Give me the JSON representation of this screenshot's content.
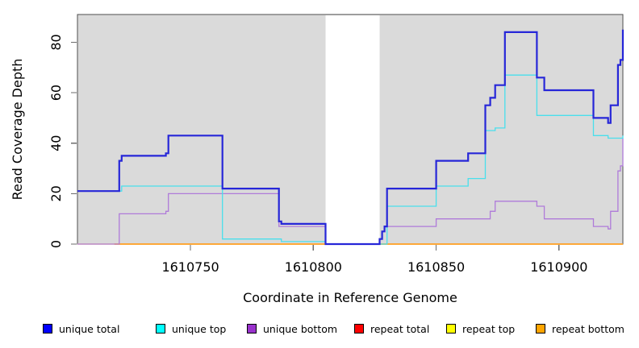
{
  "chart_data": {
    "type": "line",
    "subtype": "step-after-coverage-plot",
    "title": "",
    "xlabel": "Coordinate in Reference Genome",
    "ylabel": "Read Coverage Depth",
    "xlim": [
      1610704,
      1610926
    ],
    "ylim": [
      0,
      91
    ],
    "x_ticks": [
      1610750,
      1610800,
      1610850,
      1610900
    ],
    "y_ticks": [
      0,
      20,
      40,
      60,
      80
    ],
    "grid": false,
    "plot_bg": "#dadada",
    "frame_color": "#4d4d4d",
    "tick_color": "#6b6b6b",
    "masked_region": {
      "x_start": 1610805,
      "x_end": 1610827,
      "fill": "#ffffff"
    },
    "legend_position": "bottom",
    "series": [
      {
        "name": "repeat top",
        "line_color": "#ffff00",
        "line_width": 1.2,
        "segments": [
          [
            [
              1610704,
              0
            ],
            [
              1610926,
              0
            ]
          ]
        ]
      },
      {
        "name": "repeat total",
        "line_color": "#eaa6c0",
        "line_width": 1.3,
        "segments": [
          [
            [
              1610704,
              0
            ],
            [
              1610926,
              0
            ]
          ]
        ]
      },
      {
        "name": "repeat bottom",
        "line_color": "#ffa028",
        "line_width": 1.8,
        "segments": [
          [
            [
              1610719,
              0
            ],
            [
              1610805,
              0
            ]
          ],
          [
            [
              1610827,
              0
            ],
            [
              1610926,
              0
            ]
          ]
        ]
      },
      {
        "name": "unique bottom",
        "line_color": "#af7bd9",
        "line_width": 1.3,
        "segments": [
          [
            [
              1610704,
              0
            ],
            [
              1610721,
              12
            ],
            [
              1610740,
              13
            ],
            [
              1610741,
              20
            ],
            [
              1610786,
              7
            ],
            [
              1610805,
              0
            ],
            [
              1610827,
              2
            ],
            [
              1610828,
              5
            ],
            [
              1610829,
              7
            ],
            [
              1610850,
              10
            ],
            [
              1610872,
              13
            ],
            [
              1610874,
              17
            ],
            [
              1610891,
              15
            ],
            [
              1610894,
              10
            ],
            [
              1610914,
              7
            ],
            [
              1610920,
              6
            ],
            [
              1610921,
              13
            ],
            [
              1610924,
              29
            ],
            [
              1610925,
              31
            ],
            [
              1610926,
              42
            ]
          ]
        ]
      },
      {
        "name": "unique top",
        "line_color": "#49dfec",
        "line_width": 1.3,
        "segments": [
          [
            [
              1610704,
              21
            ],
            [
              1610722,
              23
            ],
            [
              1610763,
              2
            ],
            [
              1610787,
              1
            ],
            [
              1610805,
              0
            ],
            [
              1610830,
              15
            ],
            [
              1610850,
              23
            ],
            [
              1610863,
              26
            ],
            [
              1610870,
              45
            ],
            [
              1610874,
              46
            ],
            [
              1610878,
              67
            ],
            [
              1610891,
              51
            ],
            [
              1610914,
              43
            ],
            [
              1610920,
              42
            ],
            [
              1610926,
              43
            ]
          ]
        ]
      },
      {
        "name": "unique total",
        "line_color": "#2626d8",
        "line_width": 2.2,
        "segments": [
          [
            [
              1610704,
              21
            ],
            [
              1610721,
              33
            ],
            [
              1610722,
              35
            ],
            [
              1610740,
              36
            ],
            [
              1610741,
              43
            ],
            [
              1610763,
              22
            ],
            [
              1610786,
              9
            ],
            [
              1610787,
              8
            ],
            [
              1610805,
              0
            ],
            [
              1610827,
              2
            ],
            [
              1610828,
              5
            ],
            [
              1610829,
              7
            ],
            [
              1610830,
              22
            ],
            [
              1610850,
              33
            ],
            [
              1610863,
              36
            ],
            [
              1610870,
              55
            ],
            [
              1610872,
              58
            ],
            [
              1610874,
              63
            ],
            [
              1610878,
              84
            ],
            [
              1610891,
              66
            ],
            [
              1610894,
              61
            ],
            [
              1610914,
              50
            ],
            [
              1610920,
              48
            ],
            [
              1610921,
              55
            ],
            [
              1610924,
              71
            ],
            [
              1610925,
              73
            ],
            [
              1610926,
              85
            ]
          ]
        ]
      }
    ],
    "legend": [
      {
        "label": "unique total",
        "color": "#0000ff"
      },
      {
        "label": "unique top",
        "color": "#00ffff"
      },
      {
        "label": "unique bottom",
        "color": "#9932cc"
      },
      {
        "label": "repeat total",
        "color": "#ff0000"
      },
      {
        "label": "repeat top",
        "color": "#ffff00"
      },
      {
        "label": "repeat bottom",
        "color": "#ffa500"
      }
    ]
  }
}
